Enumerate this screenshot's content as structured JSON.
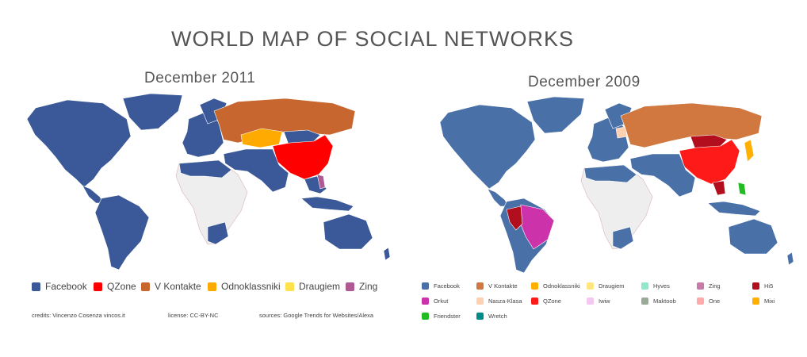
{
  "title": "WORLD MAP OF SOCIAL NETWORKS",
  "maps": [
    {
      "subtitle": "December 2011",
      "legend": [
        {
          "label": "Facebook",
          "color": "#3b5998"
        },
        {
          "label": "QZone",
          "color": "#ff0000"
        },
        {
          "label": "V Kontakte",
          "color": "#c8662f"
        },
        {
          "label": "Odnoklassniki",
          "color": "#ffaa00"
        },
        {
          "label": "Draugiem",
          "color": "#ffe14d"
        },
        {
          "label": "Zing",
          "color": "#b05a93"
        }
      ]
    },
    {
      "subtitle": "December 2009",
      "legend": [
        {
          "label": "Facebook",
          "color": "#4a70a8"
        },
        {
          "label": "V Kontakte",
          "color": "#d0783f"
        },
        {
          "label": "Odnoklassniki",
          "color": "#ffb000"
        },
        {
          "label": "Draugiem",
          "color": "#ffe680"
        },
        {
          "label": "Hyves",
          "color": "#8fe8c8"
        },
        {
          "label": "Zing",
          "color": "#c77aa8"
        },
        {
          "label": "Hi5",
          "color": "#b20e1e"
        },
        {
          "label": "Orkut",
          "color": "#cc33aa"
        },
        {
          "label": "Nasza-Klasa",
          "color": "#ffd1b0"
        },
        {
          "label": "QZone",
          "color": "#ff1a1a"
        },
        {
          "label": "Iwiw",
          "color": "#f4c8f0"
        },
        {
          "label": "Maktoob",
          "color": "#9aaa98"
        },
        {
          "label": "One",
          "color": "#ffaaaa"
        },
        {
          "label": "Mixi",
          "color": "#ffb000"
        },
        {
          "label": "Friendster",
          "color": "#22bb22"
        },
        {
          "label": "Wretch",
          "color": "#008b8b"
        }
      ]
    }
  ],
  "credits": {
    "author": "credits: Vincenzo Cosenza vincos.it",
    "license": "license: CC-BY-NC",
    "sources": "sources: Google Trends for Websites/Alexa"
  }
}
